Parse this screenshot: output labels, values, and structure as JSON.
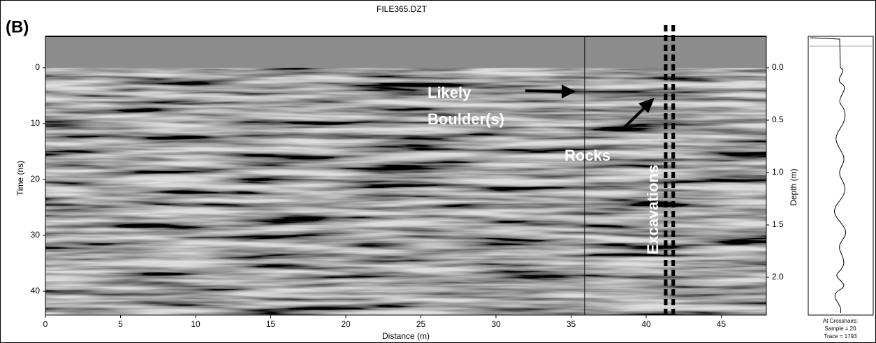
{
  "chart_data": {
    "type": "radargram",
    "panel_label": "(B)",
    "title": "FILE365.DZT",
    "xlabel": "Distance (m)",
    "ylabel": "Time (ns)",
    "y2label": "Depth (m)",
    "xlim": [
      0,
      48
    ],
    "xticks": [
      0,
      5,
      10,
      15,
      20,
      25,
      30,
      35,
      40,
      45
    ],
    "ylim": [
      44.25,
      -5.6
    ],
    "yticks": [
      0,
      10,
      20,
      30,
      40
    ],
    "y2lim": [
      2.36,
      -0.3
    ],
    "y2ticks": [
      {
        "value": 0,
        "label": "0.0"
      },
      {
        "value": 0.5,
        "label": "0.5"
      },
      {
        "value": 1,
        "label": "1.0"
      },
      {
        "value": 1.5,
        "label": "1.5"
      },
      {
        "value": 2,
        "label": "2.0"
      }
    ],
    "crosshair_distance": 35.9,
    "excavation_bounds": [
      41.3,
      41.8
    ],
    "annotations": {
      "boulder_line1": "Likely",
      "boulder_line2": "Boulder(s)",
      "rocks": "Rocks",
      "excavations": "Excavations"
    },
    "trace_panel": {
      "heading": "At Crosshairs:",
      "sample": "Sample = 20",
      "trace": "Trace = 1793"
    }
  }
}
